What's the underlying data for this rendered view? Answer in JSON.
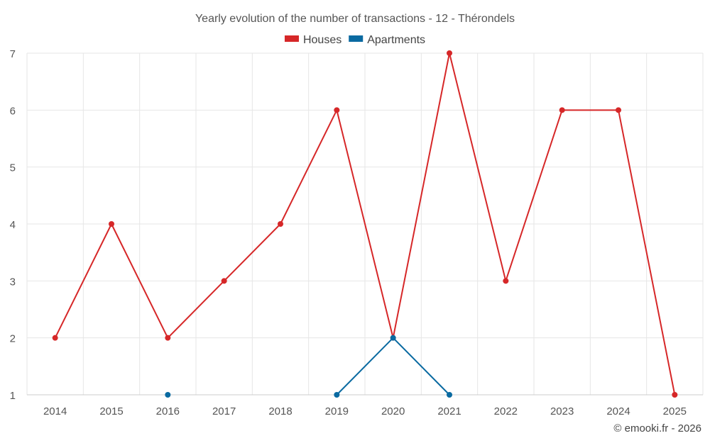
{
  "chart_data": {
    "type": "line",
    "title": "Yearly evolution of the number of transactions - 12 - Thérondels",
    "x": [
      "2014",
      "2015",
      "2016",
      "2017",
      "2018",
      "2019",
      "2020",
      "2021",
      "2022",
      "2023",
      "2024",
      "2025"
    ],
    "ylim": [
      1,
      7
    ],
    "yticks": [
      1,
      2,
      3,
      4,
      5,
      6,
      7
    ],
    "grid": true,
    "legend": "top-center",
    "series": [
      {
        "name": "Houses",
        "color": "#d62728",
        "values": [
          2,
          4,
          2,
          3,
          4,
          6,
          2,
          7,
          3,
          6,
          6,
          1
        ]
      },
      {
        "name": "Apartments",
        "color": "#0a6aa1",
        "values": [
          null,
          null,
          1,
          null,
          null,
          1,
          2,
          1,
          null,
          null,
          null,
          null
        ]
      }
    ]
  },
  "credit": "© emooki.fr - 2026"
}
